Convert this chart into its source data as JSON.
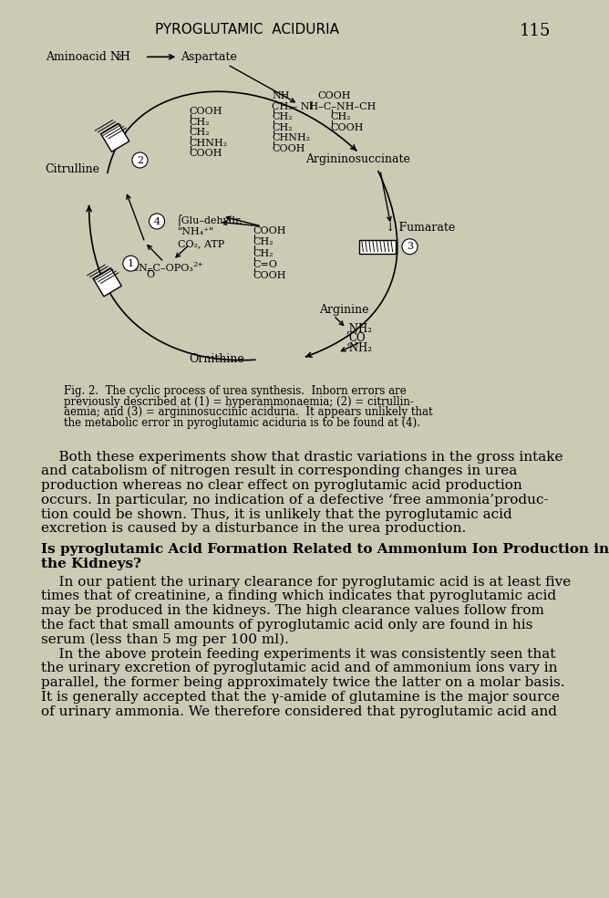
{
  "bg_color": "#ccc9b5",
  "page_title": "PYROGLUTAMIC  ACIDURIA",
  "page_number": "115",
  "fig_caption_line1": "Fig. 2.  The cyclic process of urea synthesis.  Inborn errors are",
  "fig_caption_line2": "previously described at (1) = hyperammonaemia; (2) = citrullin-",
  "fig_caption_line3": "aemia; and (3) = argininosuccinic aciduria.  It appears unlikely that",
  "fig_caption_line4": "the metabolic error in pyroglutamic aciduria is to be found at (4).",
  "body_lines1": [
    "    Both these experiments show that drastic variations in the gross intake",
    "and catabolism of nitrogen result in corresponding changes in urea",
    "production whereas no clear effect on pyroglutamic acid production",
    "occurs. In particular, no indication of a defective ‘free ammonia’produc-",
    "tion could be shown. Thus, it is unlikely that the pyroglutamic acid",
    "excretion is caused by a disturbance in the urea production."
  ],
  "heading_line1": "Is pyroglutamic Acid Formation Related to Ammonium Ion Production in",
  "heading_line2": "the Kidneys?",
  "body_lines2": [
    "    In our patient the urinary clearance for pyroglutamic acid is at least five",
    "times that of creatinine, a finding which indicates that pyroglutamic acid",
    "may be produced in the kidneys. The high clearance values follow from",
    "the fact that small amounts of pyroglutamic acid only are found in his",
    "serum (less than 5 mg per 100 ml).",
    "    In the above protein feeding experiments it was consistently seen that",
    "the urinary excretion of pyroglutamic acid and of ammonium ions vary in",
    "parallel, the former being approximately twice the latter on a molar basis.",
    "It is generally accepted that the γ-amide of glutamine is the major source",
    "of urinary ammonia. We therefore considered that pyroglutamic acid and"
  ]
}
